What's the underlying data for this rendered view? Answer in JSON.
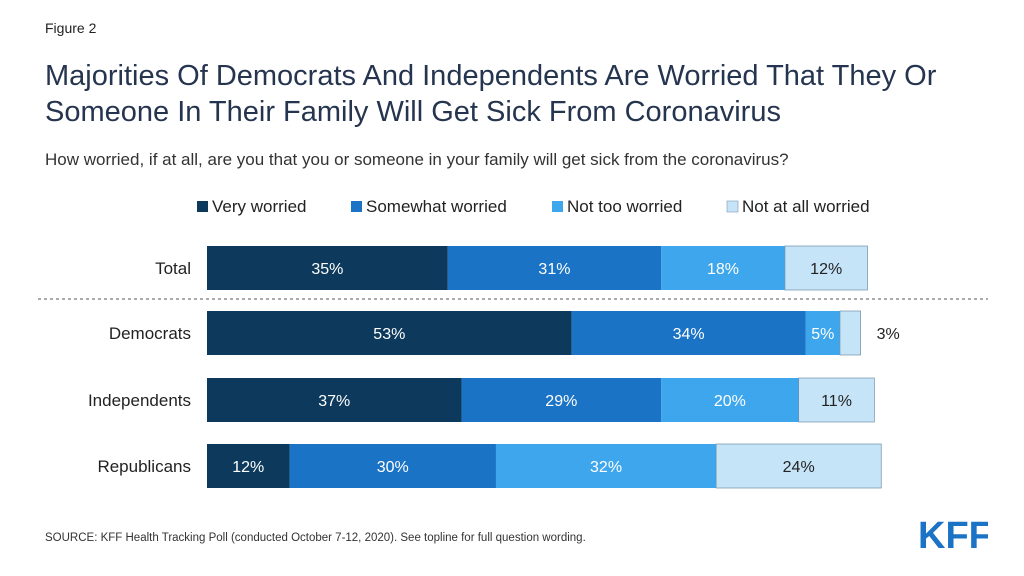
{
  "figure_label": "Figure 2",
  "source_text": "SOURCE: KFF Health Tracking Poll (conducted October 7-12, 2020). See topline for full question wording.",
  "logo_text": "KFF",
  "colors": {
    "very": "#0d3a5c",
    "somewhat": "#1a73c4",
    "not_too": "#3ea6ec",
    "not_at_all": "#c6e4f8",
    "logo": "#1a73c4",
    "divider": "#555555"
  },
  "chart_data": {
    "type": "bar",
    "orientation": "horizontal",
    "stacked": true,
    "title": "Majorities Of Democrats And Independents Are Worried That They Or Someone In Their Family Will Get Sick From Coronavirus",
    "subtitle": "How worried, if at all, are you that you or someone in your family will get sick from the coronavirus?",
    "legend_position": "top",
    "categories": [
      "Total",
      "Democrats",
      "Independents",
      "Republicans"
    ],
    "series": [
      {
        "name": "Very worried",
        "values": [
          35,
          53,
          37,
          12
        ],
        "labels": [
          "35%",
          "53%",
          "37%",
          "12%"
        ]
      },
      {
        "name": "Somewhat worried",
        "values": [
          31,
          34,
          29,
          30
        ],
        "labels": [
          "31%",
          "34%",
          "29%",
          "30%"
        ]
      },
      {
        "name": "Not too worried",
        "values": [
          18,
          5,
          20,
          32
        ],
        "labels": [
          "18%",
          "5%",
          "20%",
          "32%"
        ]
      },
      {
        "name": "Not at all worried",
        "values": [
          12,
          3,
          11,
          24
        ],
        "labels": [
          "12%",
          "3%",
          "11%",
          "24%"
        ]
      }
    ],
    "xlim": [
      0,
      100
    ],
    "grid": false
  }
}
